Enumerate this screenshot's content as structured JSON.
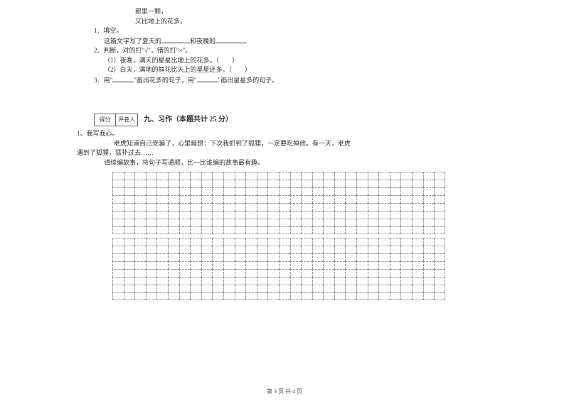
{
  "poem": {
    "line1": "那里一颗，",
    "line2": "又比地上的花多。"
  },
  "questions": {
    "q1": {
      "num": "1．填空。",
      "text_a": "这篇文字写了夏天的",
      "text_b": "和夜晚的",
      "text_c": "。"
    },
    "q2": {
      "num": "2．判断，对的打\"√\"，错的打\"×\"。",
      "sub1": "（1）夜晚，满天的星星比地上的花多。（　　）",
      "sub2": "（2）白天，满地的鲜花比天上的星星还多。（　　）"
    },
    "q3": {
      "text_a": "3．用\"",
      "text_b": "\"画出花多的句子，用\"",
      "text_c": "\"画出星星多的句子。"
    }
  },
  "score": {
    "left": "得分",
    "right": "评卷人"
  },
  "section": {
    "title": "九、习作（本题共计 25 分）"
  },
  "essay": {
    "line1": "1、我写我心。",
    "line2": "老虎知道自己受骗了，心里暗想：下次我抓到了狐狸，一定要吃掉他。有一天，老虎",
    "line3": "遇到了狐狸，猛扑过去……",
    "line4": "请续编故事，将句子写通顺，比一比谁编的故事最有趣。"
  },
  "grid": {
    "block1_rows": 8,
    "block2_rows": 8,
    "cols": 30
  },
  "footer": "第 3 页 共 4 页",
  "colors": {
    "text": "#333333",
    "border": "#999999",
    "bg": "#ffffff"
  }
}
